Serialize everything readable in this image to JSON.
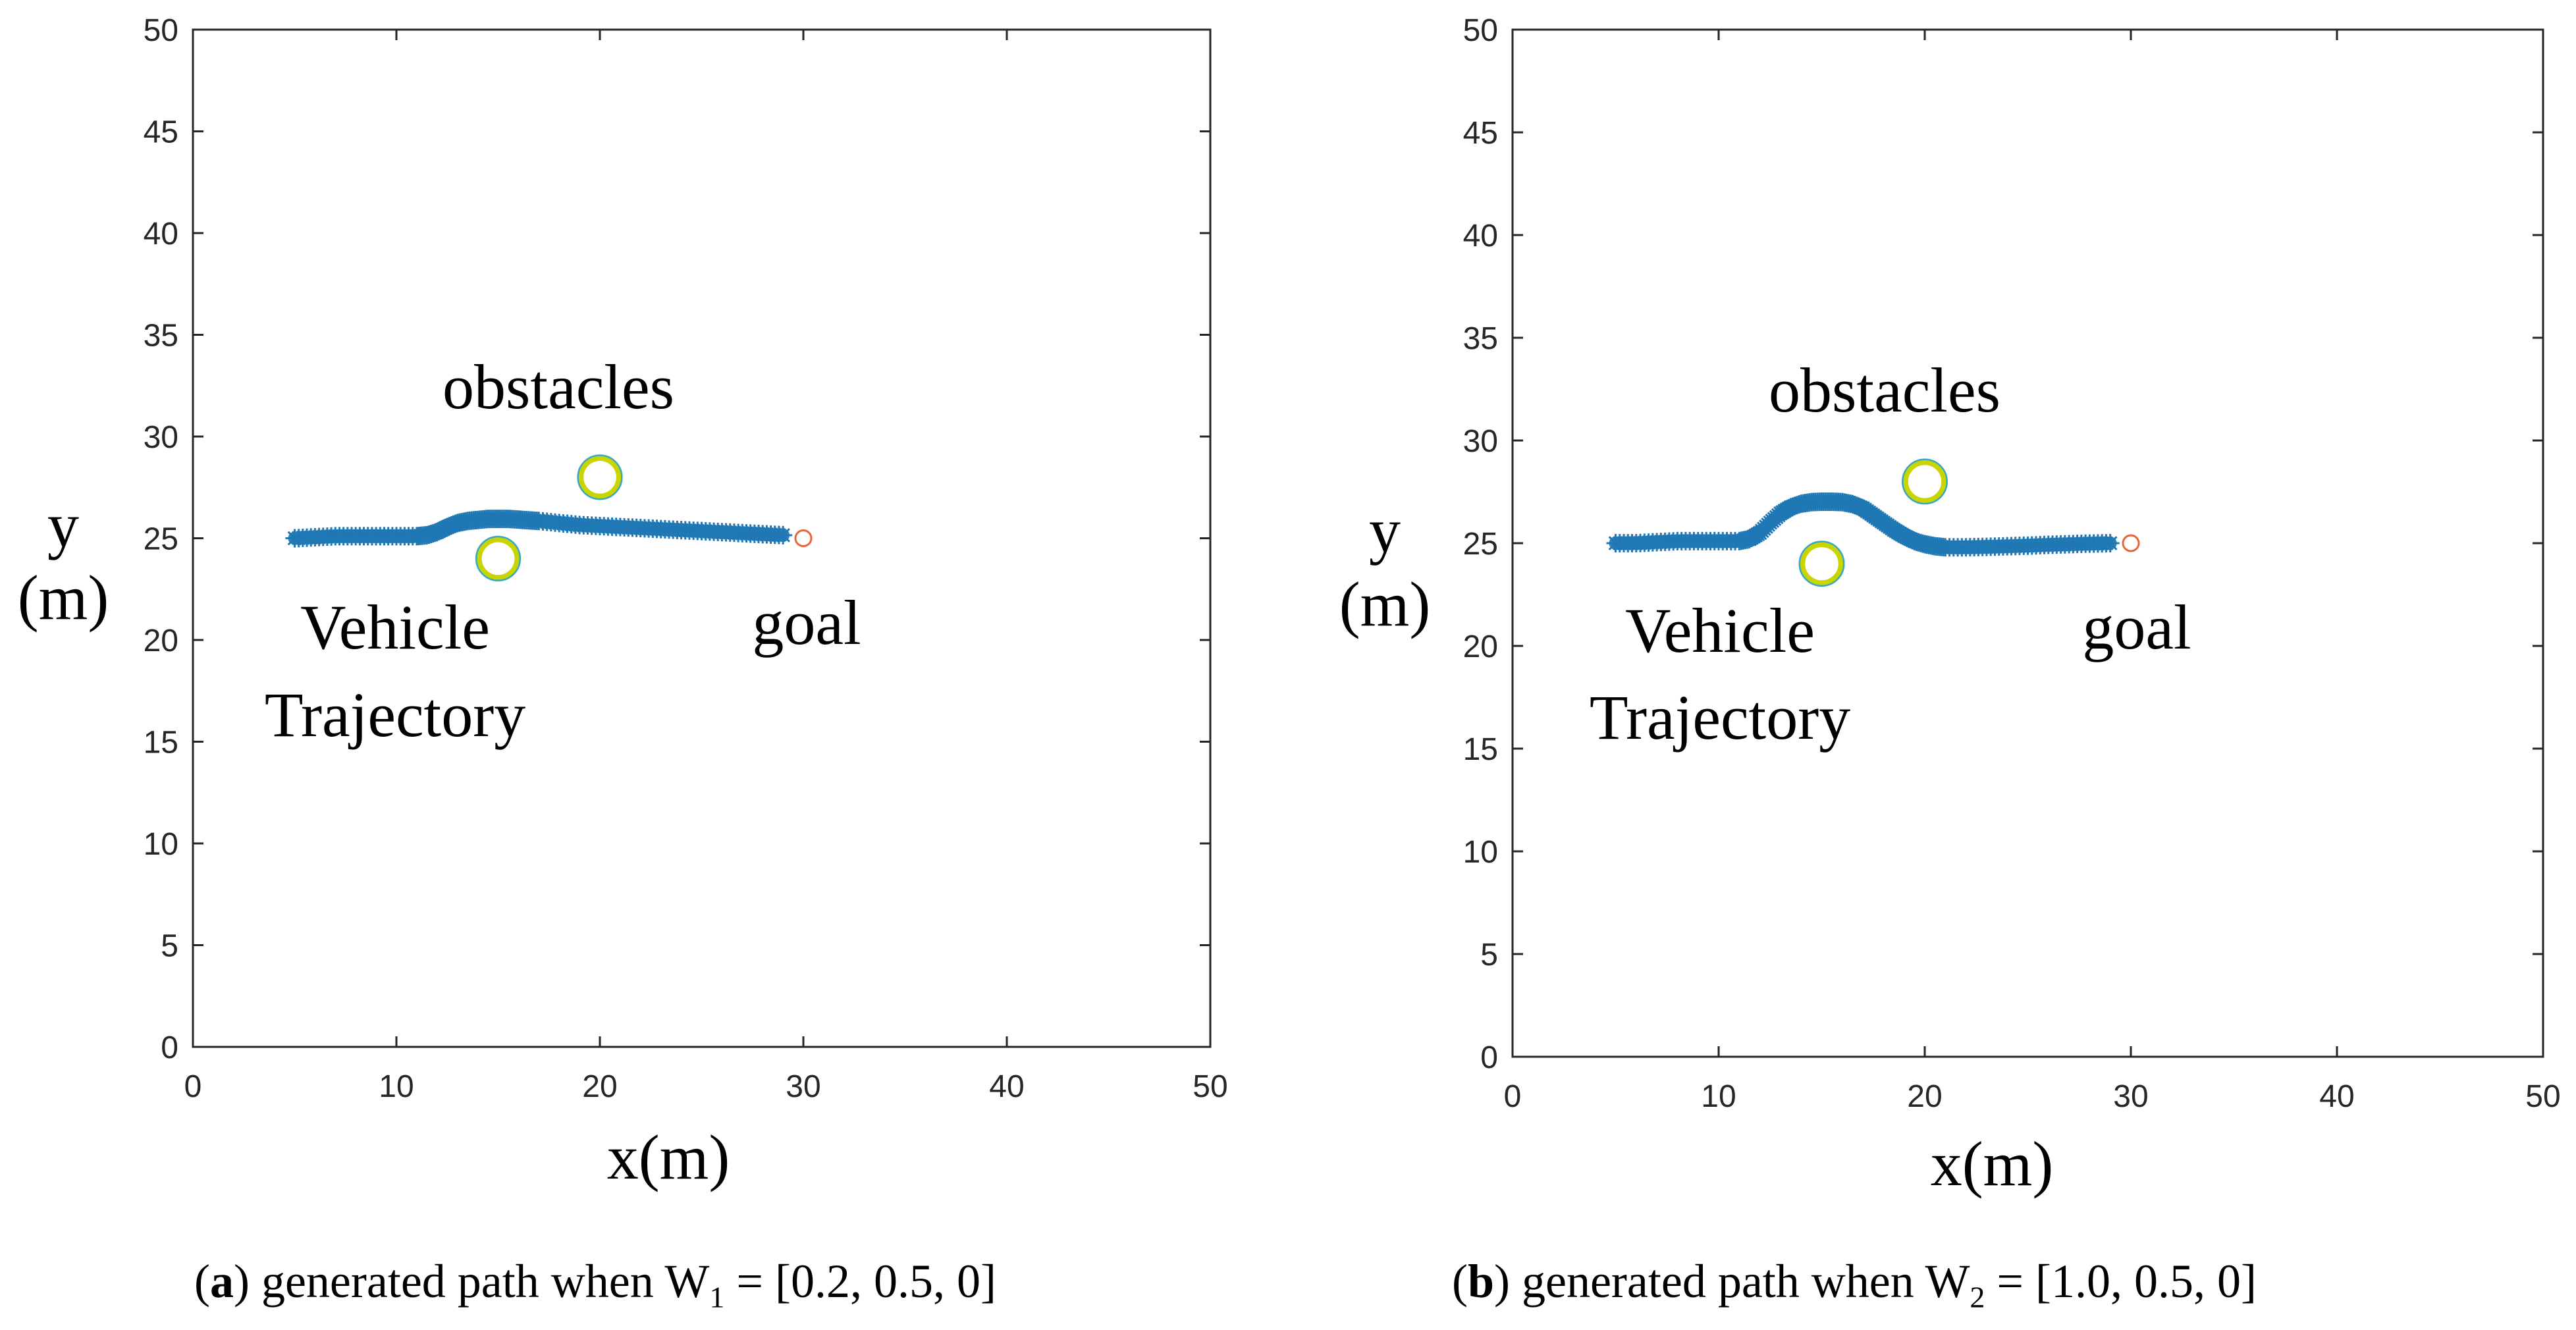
{
  "chart_data": [
    {
      "id": "a",
      "type": "scatter",
      "xlim": [
        0,
        50
      ],
      "ylim": [
        0,
        50
      ],
      "xticks": [
        0,
        10,
        20,
        30,
        40,
        50
      ],
      "yticks": [
        0,
        5,
        10,
        15,
        20,
        25,
        30,
        35,
        40,
        45,
        50
      ],
      "xlabel": "x(m)",
      "ylabel_line1": "y",
      "ylabel_line2": "(m)",
      "grid": false,
      "series": [
        {
          "name": "Vehicle Trajectory",
          "marker": "*",
          "color": "#1f77b4",
          "x": [
            5,
            6,
            7,
            8,
            9,
            10,
            11,
            11.5,
            12,
            12.5,
            13,
            13.5,
            14,
            14.5,
            15,
            15.5,
            16,
            16.5,
            17,
            18,
            19,
            20,
            21,
            22,
            23,
            24,
            25,
            26,
            27,
            28,
            29
          ],
          "y": [
            25,
            25.05,
            25.1,
            25.1,
            25.1,
            25.1,
            25.1,
            25.15,
            25.3,
            25.55,
            25.75,
            25.85,
            25.9,
            25.95,
            25.95,
            25.95,
            25.92,
            25.88,
            25.85,
            25.75,
            25.65,
            25.6,
            25.55,
            25.5,
            25.45,
            25.4,
            25.35,
            25.3,
            25.25,
            25.2,
            25.15
          ]
        },
        {
          "name": "goal",
          "marker": "o",
          "color": "#e8643c",
          "x": [
            30
          ],
          "y": [
            25
          ]
        }
      ],
      "obstacles": [
        {
          "x": 20,
          "y": 28,
          "r": 1
        },
        {
          "x": 15,
          "y": 24,
          "r": 1
        }
      ],
      "annotations": {
        "obstacles": "obstacles",
        "vehicle_line1": "Vehicle",
        "vehicle_line2": "Trajectory",
        "goal": "goal"
      }
    },
    {
      "id": "b",
      "type": "scatter",
      "xlim": [
        0,
        50
      ],
      "ylim": [
        0,
        50
      ],
      "xticks": [
        0,
        10,
        20,
        30,
        40,
        50
      ],
      "yticks": [
        0,
        5,
        10,
        15,
        20,
        25,
        30,
        35,
        40,
        45,
        50
      ],
      "xlabel": "x(m)",
      "ylabel_line1": "y",
      "ylabel_line2": "(m)",
      "grid": false,
      "series": [
        {
          "name": "Vehicle Trajectory",
          "marker": "*",
          "color": "#1f77b4",
          "x": [
            5,
            6,
            7,
            8,
            9,
            10,
            11,
            11.5,
            12,
            12.5,
            13,
            13.5,
            14,
            14.5,
            15,
            15.5,
            16,
            16.5,
            17,
            17.5,
            18,
            18.5,
            19,
            19.5,
            20,
            20.5,
            21,
            22,
            23,
            24,
            25,
            26,
            27,
            28,
            29
          ],
          "y": [
            25,
            25,
            25.05,
            25.1,
            25.1,
            25.1,
            25.1,
            25.2,
            25.5,
            26,
            26.45,
            26.75,
            26.92,
            27,
            27.02,
            27.02,
            27,
            26.9,
            26.7,
            26.35,
            26,
            25.65,
            25.35,
            25.1,
            24.95,
            24.85,
            24.8,
            24.8,
            24.82,
            24.85,
            24.88,
            24.92,
            24.95,
            24.98,
            25
          ]
        },
        {
          "name": "goal",
          "marker": "o",
          "color": "#e8643c",
          "x": [
            30
          ],
          "y": [
            25
          ]
        }
      ],
      "obstacles": [
        {
          "x": 20,
          "y": 28,
          "r": 1
        },
        {
          "x": 15,
          "y": 24,
          "r": 1
        }
      ],
      "annotations": {
        "obstacles": "obstacles",
        "vehicle_line1": "Vehicle",
        "vehicle_line2": "Trajectory",
        "goal": "goal"
      }
    }
  ],
  "captions": {
    "a": {
      "label": "a",
      "text": " generated path when  W",
      "sub": "1",
      "rest": " = [0.2,  0.5,  0]"
    },
    "b": {
      "label": "b",
      "text": " generated path when  W",
      "sub": "2",
      "rest": " = [1.0,  0.5,  0]"
    }
  }
}
